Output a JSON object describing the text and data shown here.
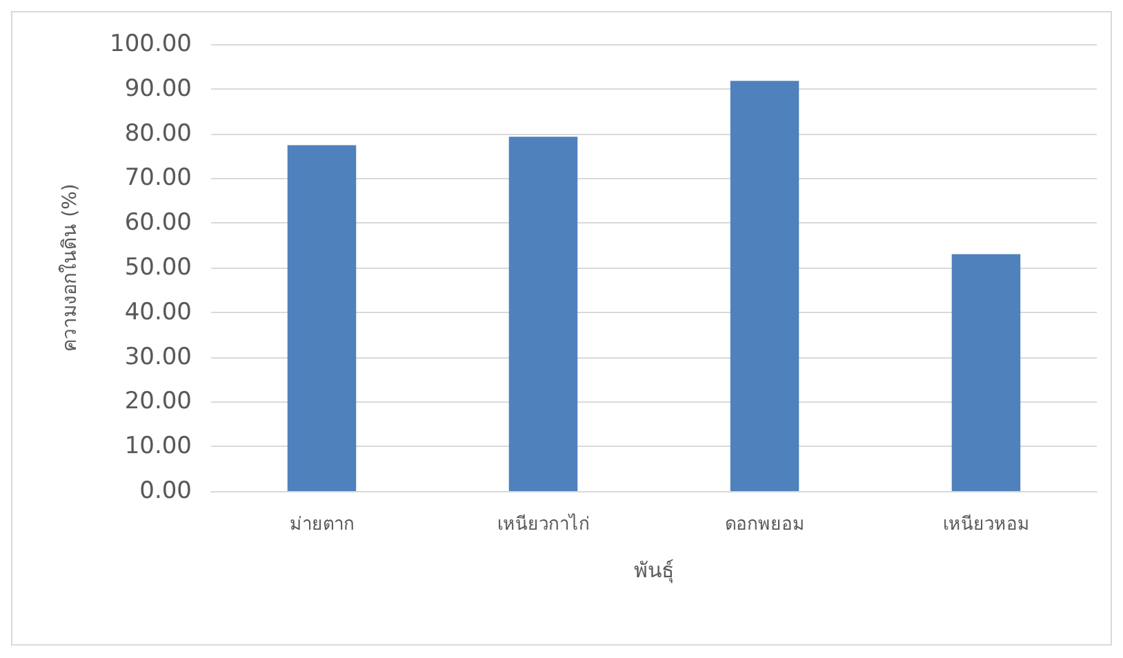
{
  "chart_data": {
    "type": "bar",
    "xlabel": "พันธุ์",
    "ylabel": "ความงอกในดิน (%)",
    "categories": [
      "ม่ายตาก",
      "เหนียวกาไก่",
      "ดอกพยอม",
      "เหนียวหอม"
    ],
    "values": [
      77.4,
      79.3,
      91.8,
      53.0
    ],
    "color": "#4f81bd",
    "ylim": [
      0,
      100
    ],
    "yticks": [
      {
        "value": 0,
        "label": "0.00"
      },
      {
        "value": 10,
        "label": "10.00"
      },
      {
        "value": 20,
        "label": "20.00"
      },
      {
        "value": 30,
        "label": "30.00"
      },
      {
        "value": 40,
        "label": "40.00"
      },
      {
        "value": 50,
        "label": "50.00"
      },
      {
        "value": 60,
        "label": "60.00"
      },
      {
        "value": 70,
        "label": "70.00"
      },
      {
        "value": 80,
        "label": "80.00"
      },
      {
        "value": 90,
        "label": "90.00"
      },
      {
        "value": 100,
        "label": "100.00"
      }
    ],
    "grid": "y"
  }
}
